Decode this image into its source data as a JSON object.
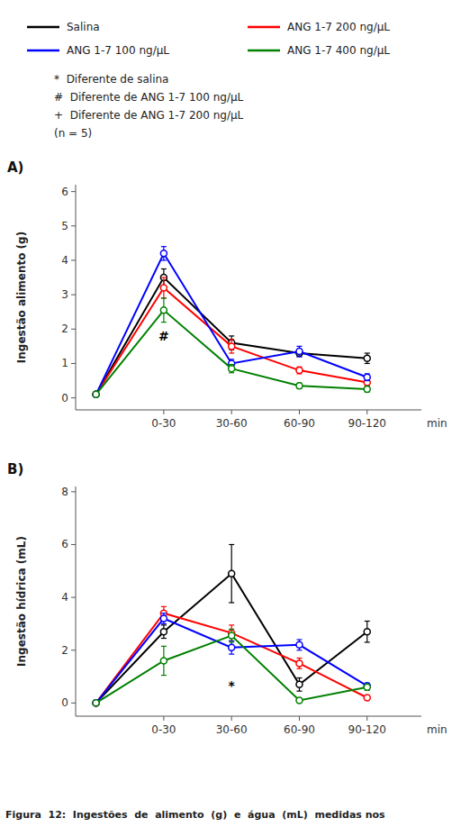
{
  "chart_data": [
    {
      "type": "line",
      "title": "A)",
      "ylabel": "Ingestão alimento (g)",
      "xlabel": "min",
      "marker": "circle",
      "grid": false,
      "x": [
        0,
        1,
        2,
        3,
        4
      ],
      "xlim": [
        -0.3,
        4.8
      ],
      "xticks": [
        {
          "value": 1,
          "label": "0-30"
        },
        {
          "value": 2,
          "label": "30-60"
        },
        {
          "value": 3,
          "label": "60-90"
        },
        {
          "value": 4,
          "label": "90-120"
        }
      ],
      "ylim": [
        -0.35,
        6.2
      ],
      "yticks": [
        0,
        1,
        2,
        3,
        4,
        5,
        6
      ],
      "series": [
        {
          "name": "Salina",
          "color": "#000000",
          "values": [
            0.1,
            3.5,
            1.6,
            1.3,
            1.15
          ],
          "errors": [
            0.05,
            0.25,
            0.2,
            0.1,
            0.15
          ]
        },
        {
          "name": "ANG 1-7 200 ng/μL",
          "color": "#ff0000",
          "values": [
            0.1,
            3.2,
            1.5,
            0.8,
            0.45
          ],
          "errors": [
            0.05,
            0.3,
            0.2,
            0.1,
            0.1
          ]
        },
        {
          "name": "ANG 1-7 100 ng/μL",
          "color": "#0000ff",
          "values": [
            0.1,
            4.2,
            1.0,
            1.35,
            0.6
          ],
          "errors": [
            0.05,
            0.2,
            0.12,
            0.15,
            0.1
          ]
        },
        {
          "name": "ANG 1-7 400 ng/μL",
          "color": "#008000",
          "values": [
            0.1,
            2.55,
            0.85,
            0.35,
            0.25
          ],
          "errors": [
            0.05,
            0.35,
            0.12,
            0.08,
            0.08
          ]
        }
      ],
      "annotations": [
        {
          "text": "#",
          "x": 1,
          "y": 1.95
        }
      ],
      "notes": [
        "*  Diferente de salina",
        "#  Diferente de ANG 1-7 100 ng/μL",
        "+  Diferente de ANG 1-7 200 ng/μL",
        "(n = 5)"
      ]
    },
    {
      "type": "line",
      "title": "B)",
      "ylabel": "Ingestão hídrica (mL)",
      "xlabel": "min",
      "marker": "circle",
      "grid": false,
      "x": [
        0,
        1,
        2,
        3,
        4
      ],
      "xlim": [
        -0.3,
        4.8
      ],
      "xticks": [
        {
          "value": 1,
          "label": "0-30"
        },
        {
          "value": 2,
          "label": "30-60"
        },
        {
          "value": 3,
          "label": "60-90"
        },
        {
          "value": 4,
          "label": "90-120"
        }
      ],
      "ylim": [
        -0.5,
        8.2
      ],
      "yticks": [
        0,
        2,
        4,
        6,
        8
      ],
      "series": [
        {
          "color": "#000000",
          "values": [
            0.0,
            2.7,
            4.9,
            0.7,
            2.7
          ],
          "errors": [
            0.0,
            0.25,
            1.1,
            0.25,
            0.4
          ]
        },
        {
          "color": "#ff0000",
          "values": [
            0.0,
            3.4,
            2.65,
            1.5,
            0.2
          ],
          "errors": [
            0.0,
            0.25,
            0.3,
            0.2,
            0.08
          ]
        },
        {
          "color": "#0000ff",
          "values": [
            0.0,
            3.2,
            2.1,
            2.2,
            0.65
          ],
          "errors": [
            0.0,
            0.2,
            0.25,
            0.2,
            0.1
          ]
        },
        {
          "color": "#008000",
          "values": [
            0.0,
            1.6,
            2.55,
            0.1,
            0.6
          ],
          "errors": [
            0.0,
            0.55,
            0.25,
            0.08,
            0.12
          ]
        }
      ],
      "annotations": [
        {
          "text": "*",
          "x": 2,
          "y": 0.85
        }
      ],
      "caption": "Figura  12:  Ingestões  de  alimento  (g)  e  água  (mL)  medidas nos"
    }
  ]
}
